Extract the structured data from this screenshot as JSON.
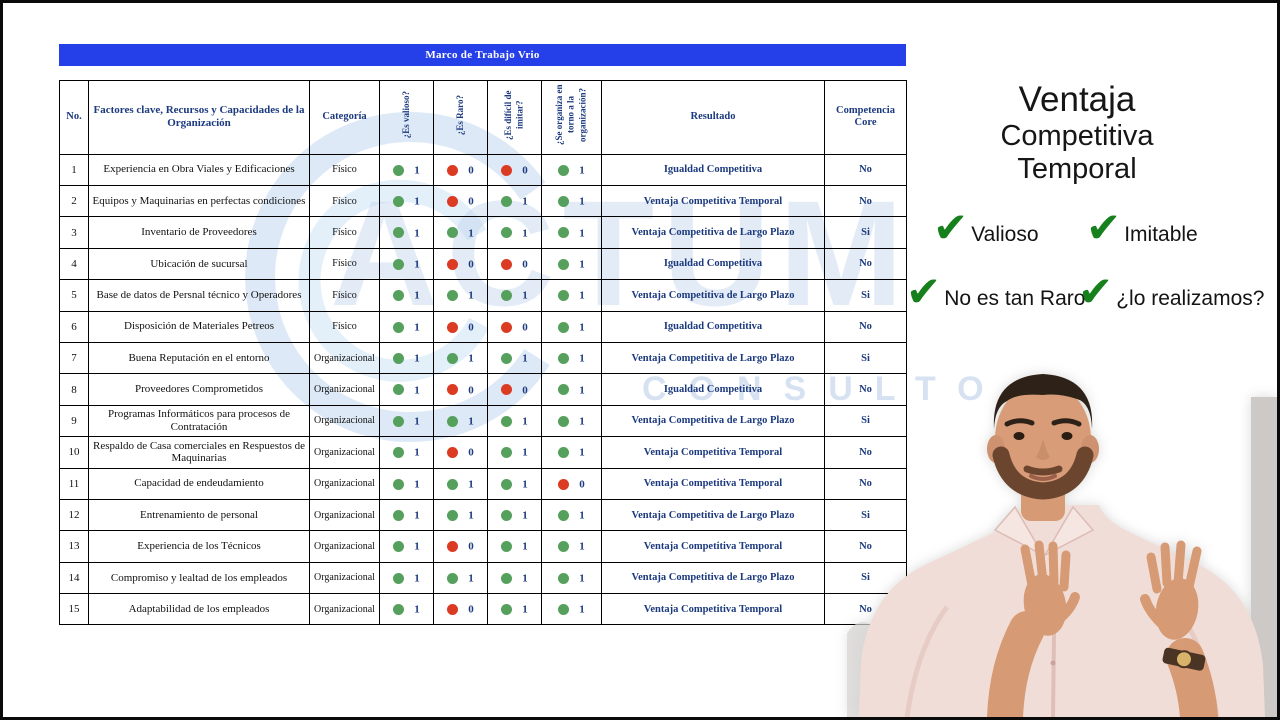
{
  "banner": {
    "title": "Marco de Trabajo Vrio"
  },
  "table": {
    "headers": {
      "no": "No.",
      "factors": "Factores clave, Recursos y Capacidades de la Organización",
      "category": "Categoría",
      "valuable": "¿Es valioso?",
      "rare": "¿Es Raro?",
      "imitate": "¿Es difícil de imitar?",
      "organized": "¿Se organiza en torno a la organización?",
      "result": "Resultado",
      "core": "Competencia Core"
    },
    "rows": [
      {
        "no": "1",
        "factor": "Experiencia en Obra Viales y Edificaciones",
        "category": "Físico",
        "v": 1,
        "r": 0,
        "i": 0,
        "o": 1,
        "result": "Igualdad Competitiva",
        "core": "No"
      },
      {
        "no": "2",
        "factor": "Equipos y Maquinarias en perfectas condiciones",
        "category": "Físico",
        "v": 1,
        "r": 0,
        "i": 1,
        "o": 1,
        "result": "Ventaja Competitiva Temporal",
        "core": "No"
      },
      {
        "no": "3",
        "factor": "Inventario de Proveedores",
        "category": "Físico",
        "v": 1,
        "r": 1,
        "i": 1,
        "o": 1,
        "result": "Ventaja Competitiva de Largo Plazo",
        "core": "Si"
      },
      {
        "no": "4",
        "factor": "Ubicación de sucursal",
        "category": "Físico",
        "v": 1,
        "r": 0,
        "i": 0,
        "o": 1,
        "result": "Igualdad Competitiva",
        "core": "No"
      },
      {
        "no": "5",
        "factor": "Base de datos de Persnal técnico y Operadores",
        "category": "Físico",
        "v": 1,
        "r": 1,
        "i": 1,
        "o": 1,
        "result": "Ventaja Competitiva de Largo Plazo",
        "core": "Si"
      },
      {
        "no": "6",
        "factor": "Disposición de Materiales Petreos",
        "category": "Físico",
        "v": 1,
        "r": 0,
        "i": 0,
        "o": 1,
        "result": "Igualdad Competitiva",
        "core": "No"
      },
      {
        "no": "7",
        "factor": "Buena Reputación en el entorno",
        "category": "Organizacional",
        "v": 1,
        "r": 1,
        "i": 1,
        "o": 1,
        "result": "Ventaja Competitiva de Largo Plazo",
        "core": "Si"
      },
      {
        "no": "8",
        "factor": "Proveedores Comprometidos",
        "category": "Organizacional",
        "v": 1,
        "r": 0,
        "i": 0,
        "o": 1,
        "result": "Igualdad Competitiva",
        "core": "No"
      },
      {
        "no": "9",
        "factor": "Programas Informáticos para procesos de Contratación",
        "category": "Organizacional",
        "v": 1,
        "r": 1,
        "i": 1,
        "o": 1,
        "result": "Ventaja Competitiva de Largo Plazo",
        "core": "Si"
      },
      {
        "no": "10",
        "factor": "Respaldo de Casa comerciales en Respuestos de Maquinarias",
        "category": "Organizacional",
        "v": 1,
        "r": 0,
        "i": 1,
        "o": 1,
        "result": "Ventaja Competitiva Temporal",
        "core": "No"
      },
      {
        "no": "11",
        "factor": "Capacidad de endeudamiento",
        "category": "Organizacional",
        "v": 1,
        "r": 1,
        "i": 1,
        "o": 0,
        "result": "Ventaja Competitiva Temporal",
        "core": "No"
      },
      {
        "no": "12",
        "factor": "Entrenamiento de personal",
        "category": "Organizacional",
        "v": 1,
        "r": 1,
        "i": 1,
        "o": 1,
        "result": "Ventaja Competitiva de Largo Plazo",
        "core": "Si"
      },
      {
        "no": "13",
        "factor": "Experiencia de los Técnicos",
        "category": "Organizacional",
        "v": 1,
        "r": 0,
        "i": 1,
        "o": 1,
        "result": "Ventaja Competitiva Temporal",
        "core": "No"
      },
      {
        "no": "14",
        "factor": "Compromiso y lealtad de los empleados",
        "category": "Organizacional",
        "v": 1,
        "r": 1,
        "i": 1,
        "o": 1,
        "result": "Ventaja Competitiva de Largo Plazo",
        "core": "Si"
      },
      {
        "no": "15",
        "factor": "Adaptabilidad de los empleados",
        "category": "Organizacional",
        "v": 1,
        "r": 0,
        "i": 1,
        "o": 1,
        "result": "Ventaja Competitiva Temporal",
        "core": "No"
      }
    ]
  },
  "side_panel": {
    "title_lines": [
      "Ventaja",
      "Competitiva",
      "Temporal"
    ],
    "checks": [
      {
        "label": "Valioso"
      },
      {
        "label": "Imitable"
      },
      {
        "label": "No es tan Raro"
      },
      {
        "label": "¿lo realizamos?"
      }
    ]
  },
  "watermark": {
    "line1": "ACTUM",
    "line2": "CONSULTO"
  },
  "icons": {
    "checkmark": "✔"
  },
  "colors": {
    "banner_blue": "#2540e8",
    "navy": "#1c3a7e",
    "dot_green": "#55a05c",
    "dot_red": "#da3b22",
    "check_green": "#15801c",
    "watermark_blue": "#c7d9ee"
  }
}
